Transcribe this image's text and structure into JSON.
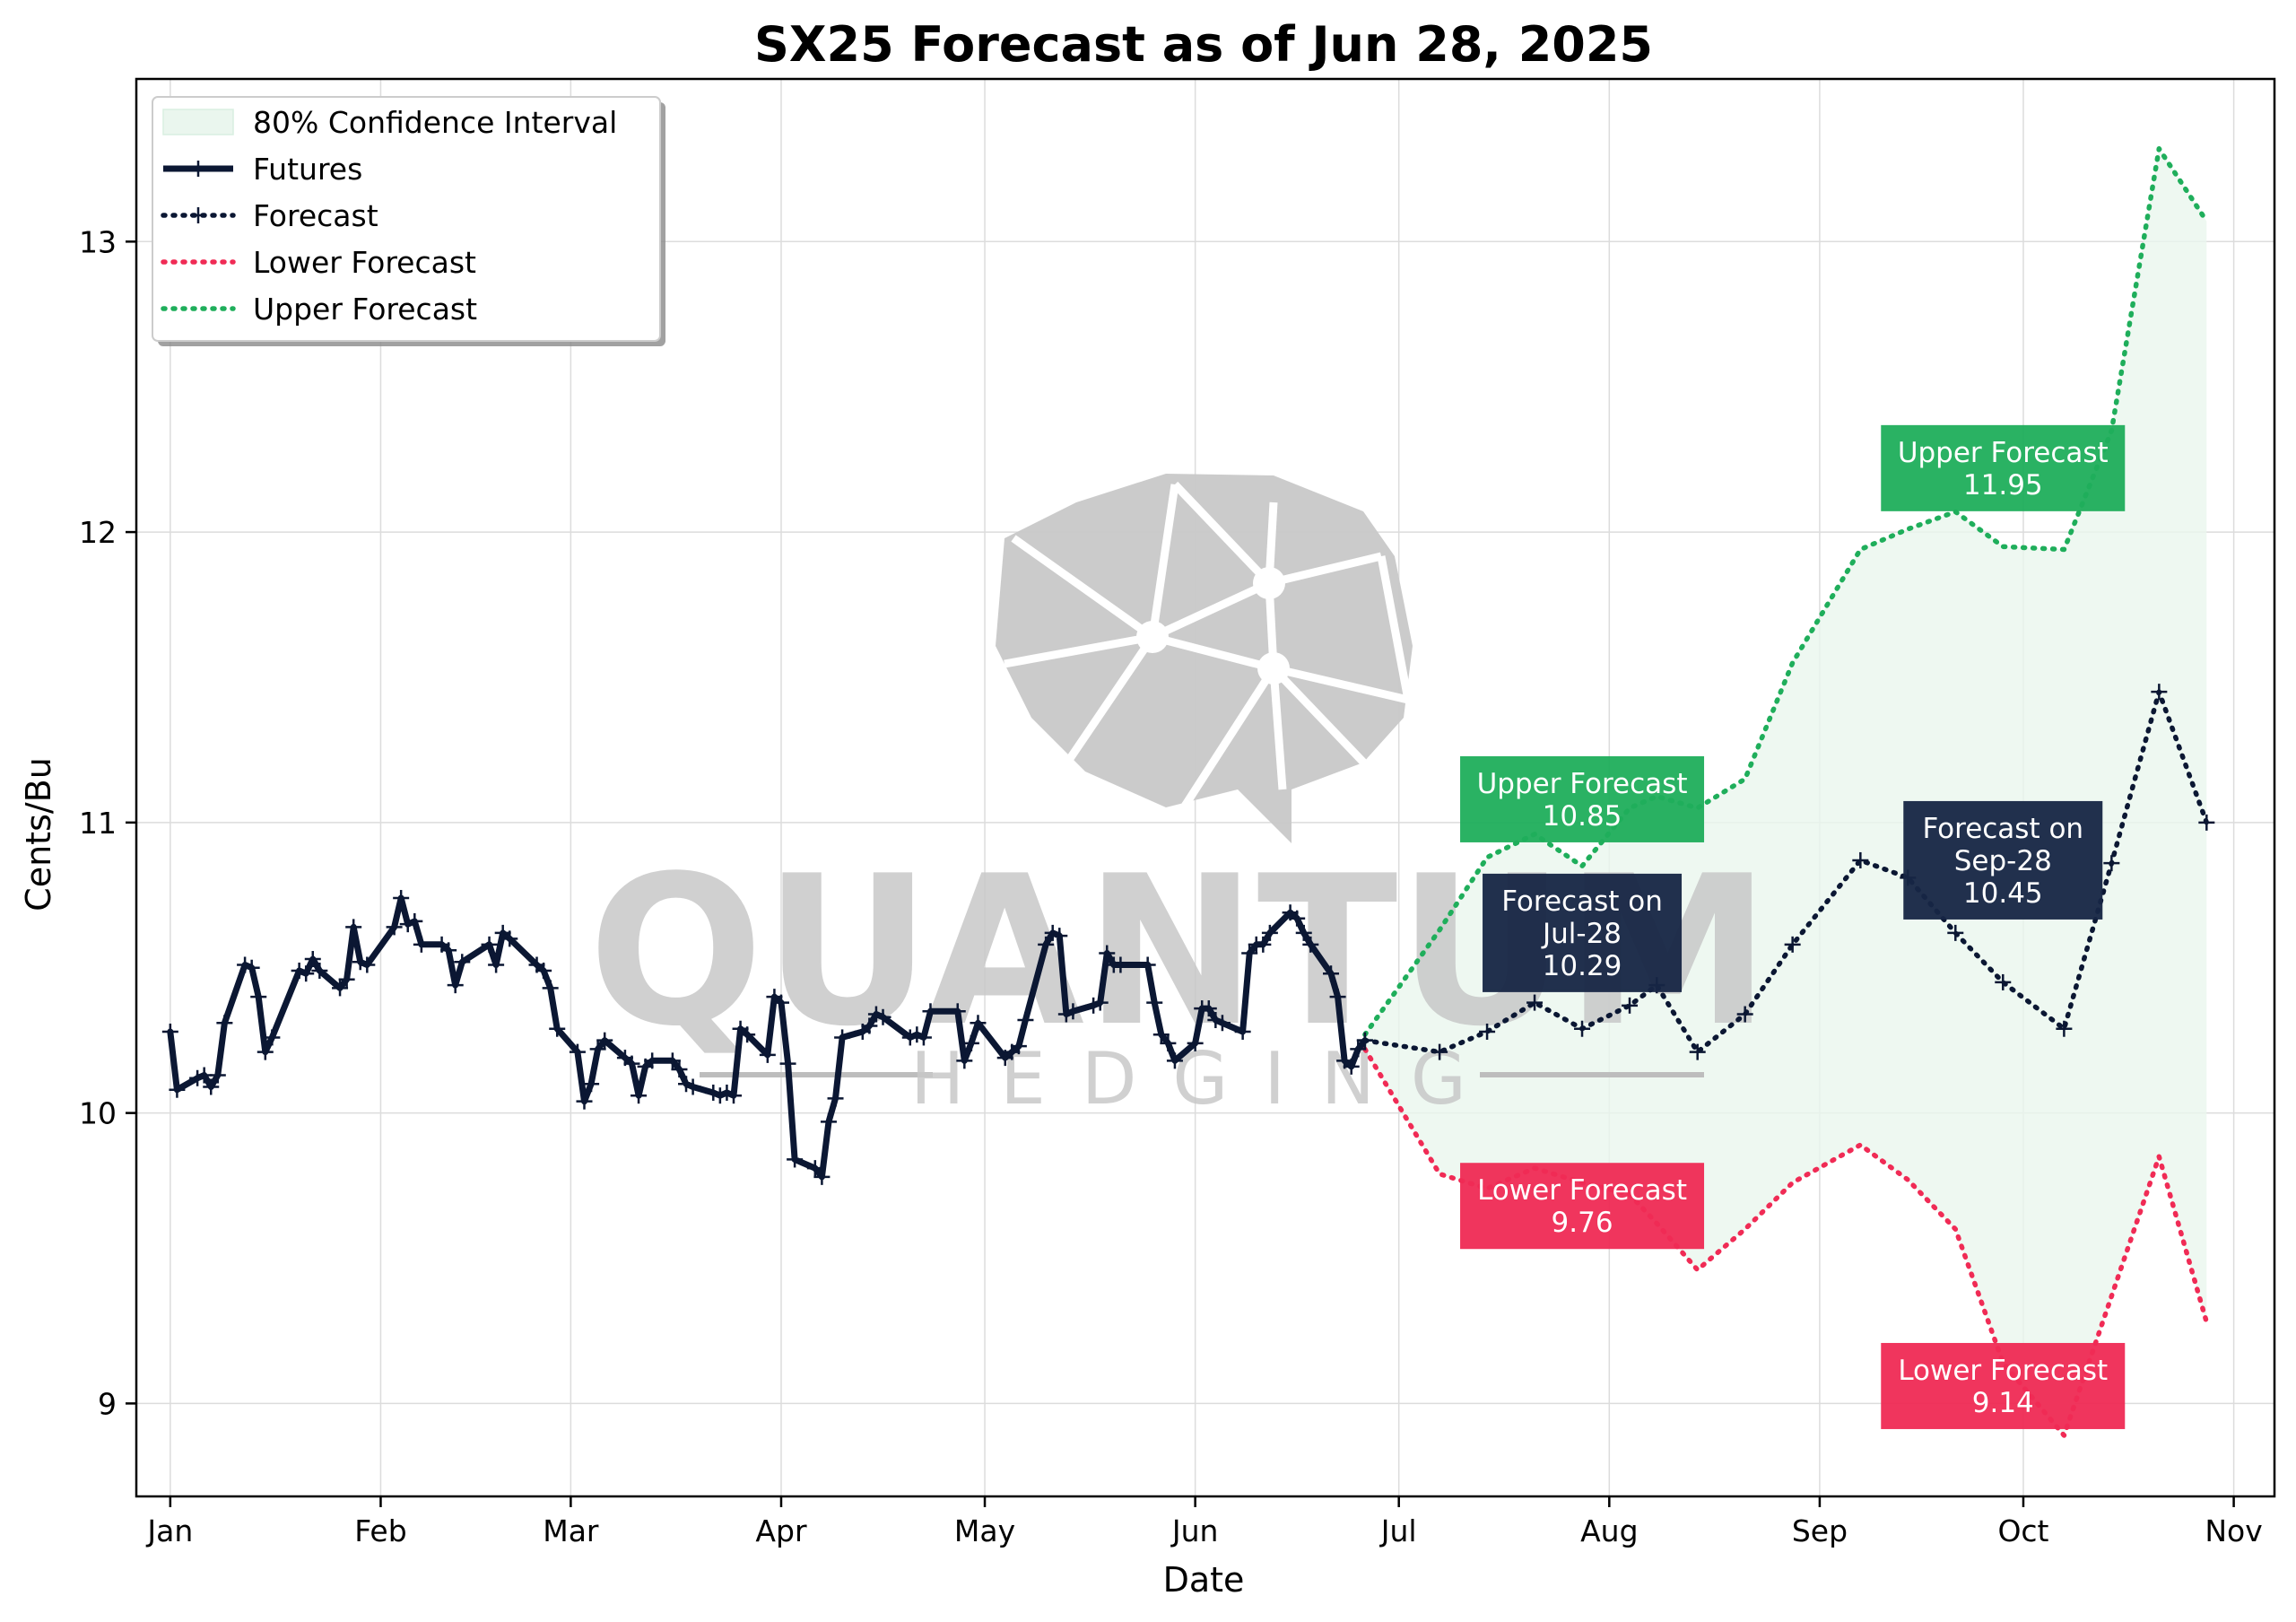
{
  "chart_data": {
    "type": "line",
    "title": "SX25 Forecast as of Jun 28, 2025",
    "xlabel": "Date",
    "ylabel": "Cents/Bu",
    "xlim": [
      "2024-12-27",
      "2025-11-07"
    ],
    "ylim": [
      8.68,
      13.56
    ],
    "grid": true,
    "legend_position": "top-left",
    "x_ticks": [
      {
        "date": "2025-01-01",
        "label": "Jan"
      },
      {
        "date": "2025-02-01",
        "label": "Feb"
      },
      {
        "date": "2025-03-01",
        "label": "Mar"
      },
      {
        "date": "2025-04-01",
        "label": "Apr"
      },
      {
        "date": "2025-05-01",
        "label": "May"
      },
      {
        "date": "2025-06-01",
        "label": "Jun"
      },
      {
        "date": "2025-07-01",
        "label": "Jul"
      },
      {
        "date": "2025-08-01",
        "label": "Aug"
      },
      {
        "date": "2025-09-01",
        "label": "Sep"
      },
      {
        "date": "2025-10-01",
        "label": "Oct"
      },
      {
        "date": "2025-11-01",
        "label": "Nov"
      }
    ],
    "y_ticks": [
      9,
      10,
      11,
      12,
      13
    ],
    "legend": [
      {
        "label": "80% Confidence Interval",
        "color": "#eaf6ee",
        "style": "fill"
      },
      {
        "label": "Futures",
        "color": "#0b1733",
        "style": "solid"
      },
      {
        "label": "Forecast",
        "color": "#0b1733",
        "style": "dotted"
      },
      {
        "label": "Lower Forecast",
        "color": "#f02b55",
        "style": "dotted"
      },
      {
        "label": "Upper Forecast",
        "color": "#1fae5b",
        "style": "dotted"
      }
    ],
    "series": [
      {
        "name": "Futures",
        "color": "#0b1733",
        "points": [
          [
            "2025-01-01",
            10.28
          ],
          [
            "2025-01-02",
            10.08
          ],
          [
            "2025-01-05",
            10.12
          ],
          [
            "2025-01-06",
            10.13
          ],
          [
            "2025-01-07",
            10.09
          ],
          [
            "2025-01-08",
            10.13
          ],
          [
            "2025-01-09",
            10.31
          ],
          [
            "2025-01-12",
            10.51
          ],
          [
            "2025-01-13",
            10.5
          ],
          [
            "2025-01-14",
            10.4
          ],
          [
            "2025-01-15",
            10.21
          ],
          [
            "2025-01-16",
            10.26
          ],
          [
            "2025-01-20",
            10.49
          ],
          [
            "2025-01-21",
            10.48
          ],
          [
            "2025-01-22",
            10.53
          ],
          [
            "2025-01-23",
            10.49
          ],
          [
            "2025-01-26",
            10.43
          ],
          [
            "2025-01-27",
            10.46
          ],
          [
            "2025-01-28",
            10.64
          ],
          [
            "2025-01-29",
            10.52
          ],
          [
            "2025-01-30",
            10.51
          ],
          [
            "2025-02-03",
            10.64
          ],
          [
            "2025-02-04",
            10.74
          ],
          [
            "2025-02-05",
            10.65
          ],
          [
            "2025-02-06",
            10.66
          ],
          [
            "2025-02-07",
            10.58
          ],
          [
            "2025-02-10",
            10.58
          ],
          [
            "2025-02-11",
            10.56
          ],
          [
            "2025-02-12",
            10.44
          ],
          [
            "2025-02-13",
            10.52
          ],
          [
            "2025-02-17",
            10.58
          ],
          [
            "2025-02-18",
            10.51
          ],
          [
            "2025-02-19",
            10.62
          ],
          [
            "2025-02-20",
            10.6
          ],
          [
            "2025-02-24",
            10.51
          ],
          [
            "2025-02-25",
            10.49
          ],
          [
            "2025-02-26",
            10.43
          ],
          [
            "2025-02-27",
            10.29
          ],
          [
            "2025-03-02",
            10.21
          ],
          [
            "2025-03-03",
            10.04
          ],
          [
            "2025-03-04",
            10.1
          ],
          [
            "2025-03-05",
            10.22
          ],
          [
            "2025-03-06",
            10.25
          ],
          [
            "2025-03-09",
            10.19
          ],
          [
            "2025-03-10",
            10.17
          ],
          [
            "2025-03-11",
            10.06
          ],
          [
            "2025-03-12",
            10.16
          ],
          [
            "2025-03-13",
            10.18
          ],
          [
            "2025-03-16",
            10.18
          ],
          [
            "2025-03-17",
            10.15
          ],
          [
            "2025-03-18",
            10.1
          ],
          [
            "2025-03-19",
            10.09
          ],
          [
            "2025-03-22",
            10.07
          ],
          [
            "2025-03-23",
            10.06
          ],
          [
            "2025-03-24",
            10.07
          ],
          [
            "2025-03-25",
            10.06
          ],
          [
            "2025-03-26",
            10.29
          ],
          [
            "2025-03-27",
            10.27
          ],
          [
            "2025-03-30",
            10.2
          ],
          [
            "2025-03-31",
            10.4
          ],
          [
            "2025-04-01",
            10.38
          ],
          [
            "2025-04-02",
            10.17
          ],
          [
            "2025-04-03",
            9.84
          ],
          [
            "2025-04-06",
            9.81
          ],
          [
            "2025-04-07",
            9.78
          ],
          [
            "2025-04-08",
            9.97
          ],
          [
            "2025-04-09",
            10.05
          ],
          [
            "2025-04-10",
            10.26
          ],
          [
            "2025-04-13",
            10.28
          ],
          [
            "2025-04-14",
            10.3
          ],
          [
            "2025-04-15",
            10.34
          ],
          [
            "2025-04-16",
            10.33
          ],
          [
            "2025-04-20",
            10.26
          ],
          [
            "2025-04-21",
            10.27
          ],
          [
            "2025-04-22",
            10.26
          ],
          [
            "2025-04-23",
            10.35
          ],
          [
            "2025-04-27",
            10.35
          ],
          [
            "2025-04-28",
            10.18
          ],
          [
            "2025-04-29",
            10.24
          ],
          [
            "2025-04-30",
            10.31
          ],
          [
            "2025-05-04",
            10.19
          ],
          [
            "2025-05-05",
            10.21
          ],
          [
            "2025-05-06",
            10.23
          ],
          [
            "2025-05-07",
            10.32
          ],
          [
            "2025-05-10",
            10.58
          ],
          [
            "2025-05-11",
            10.62
          ],
          [
            "2025-05-12",
            10.61
          ],
          [
            "2025-05-13",
            10.34
          ],
          [
            "2025-05-14",
            10.35
          ],
          [
            "2025-05-17",
            10.37
          ],
          [
            "2025-05-18",
            10.38
          ],
          [
            "2025-05-19",
            10.55
          ],
          [
            "2025-05-20",
            10.51
          ],
          [
            "2025-05-21",
            10.51
          ],
          [
            "2025-05-25",
            10.51
          ],
          [
            "2025-05-26",
            10.38
          ],
          [
            "2025-05-27",
            10.27
          ],
          [
            "2025-05-28",
            10.24
          ],
          [
            "2025-05-29",
            10.18
          ],
          [
            "2025-06-01",
            10.24
          ],
          [
            "2025-06-02",
            10.36
          ],
          [
            "2025-06-03",
            10.36
          ],
          [
            "2025-06-04",
            10.32
          ],
          [
            "2025-06-05",
            10.31
          ],
          [
            "2025-06-08",
            10.28
          ],
          [
            "2025-06-09",
            10.55
          ],
          [
            "2025-06-10",
            10.58
          ],
          [
            "2025-06-11",
            10.58
          ],
          [
            "2025-06-12",
            10.62
          ],
          [
            "2025-06-15",
            10.69
          ],
          [
            "2025-06-16",
            10.67
          ],
          [
            "2025-06-17",
            10.62
          ],
          [
            "2025-06-18",
            10.58
          ],
          [
            "2025-06-21",
            10.48
          ],
          [
            "2025-06-22",
            10.4
          ],
          [
            "2025-06-23",
            10.18
          ],
          [
            "2025-06-24",
            10.16
          ],
          [
            "2025-06-25",
            10.22
          ],
          [
            "2025-06-26",
            10.25
          ]
        ]
      },
      {
        "name": "Forecast",
        "color": "#0b1733",
        "points": [
          [
            "2025-06-26",
            10.25
          ],
          [
            "2025-07-07",
            10.21
          ],
          [
            "2025-07-14",
            10.28
          ],
          [
            "2025-07-21",
            10.38
          ],
          [
            "2025-07-28",
            10.29
          ],
          [
            "2025-08-04",
            10.37
          ],
          [
            "2025-08-08",
            10.44
          ],
          [
            "2025-08-14",
            10.21
          ],
          [
            "2025-08-21",
            10.34
          ],
          [
            "2025-08-28",
            10.58
          ],
          [
            "2025-09-07",
            10.87
          ],
          [
            "2025-09-14",
            10.81
          ],
          [
            "2025-09-21",
            10.62
          ],
          [
            "2025-09-28",
            10.45
          ],
          [
            "2025-10-07",
            10.29
          ],
          [
            "2025-10-14",
            10.86
          ],
          [
            "2025-10-21",
            11.45
          ],
          [
            "2025-10-28",
            11.0
          ]
        ]
      },
      {
        "name": "Lower Forecast",
        "color": "#f02b55",
        "points": [
          [
            "2025-06-26",
            10.22
          ],
          [
            "2025-07-07",
            9.79
          ],
          [
            "2025-07-14",
            9.74
          ],
          [
            "2025-07-21",
            9.81
          ],
          [
            "2025-07-28",
            9.76
          ],
          [
            "2025-08-04",
            9.72
          ],
          [
            "2025-08-08",
            9.62
          ],
          [
            "2025-08-14",
            9.46
          ],
          [
            "2025-08-21",
            9.6
          ],
          [
            "2025-08-28",
            9.76
          ],
          [
            "2025-09-07",
            9.89
          ],
          [
            "2025-09-14",
            9.77
          ],
          [
            "2025-09-21",
            9.6
          ],
          [
            "2025-09-28",
            9.14
          ],
          [
            "2025-10-07",
            8.89
          ],
          [
            "2025-10-14",
            9.37
          ],
          [
            "2025-10-21",
            9.85
          ],
          [
            "2025-10-28",
            9.28
          ]
        ]
      },
      {
        "name": "Upper Forecast",
        "color": "#1fae5b",
        "points": [
          [
            "2025-06-26",
            10.27
          ],
          [
            "2025-07-07",
            10.63
          ],
          [
            "2025-07-14",
            10.88
          ],
          [
            "2025-07-21",
            10.96
          ],
          [
            "2025-07-28",
            10.85
          ],
          [
            "2025-08-04",
            11.05
          ],
          [
            "2025-08-08",
            11.09
          ],
          [
            "2025-08-14",
            11.05
          ],
          [
            "2025-08-21",
            11.15
          ],
          [
            "2025-08-28",
            11.55
          ],
          [
            "2025-09-07",
            11.94
          ],
          [
            "2025-09-14",
            12.01
          ],
          [
            "2025-09-21",
            12.07
          ],
          [
            "2025-09-28",
            11.95
          ],
          [
            "2025-10-07",
            11.94
          ],
          [
            "2025-10-14",
            12.35
          ],
          [
            "2025-10-21",
            13.32
          ],
          [
            "2025-10-28",
            13.07
          ]
        ]
      }
    ],
    "annotations": [
      {
        "kind": "upper",
        "lines": [
          "Upper Forecast",
          "10.85"
        ],
        "anchor": [
          "2025-07-28",
          11.08
        ],
        "color": "#1fae5b"
      },
      {
        "kind": "forecast",
        "lines": [
          "Forecast on",
          "Jul-28",
          "10.29"
        ],
        "anchor": [
          "2025-07-28",
          10.62
        ],
        "color": "#172645"
      },
      {
        "kind": "lower",
        "lines": [
          "Lower Forecast",
          "9.76"
        ],
        "anchor": [
          "2025-07-28",
          9.68
        ],
        "color": "#f02b55"
      },
      {
        "kind": "upper",
        "lines": [
          "Upper Forecast",
          "11.95"
        ],
        "anchor": [
          "2025-09-28",
          12.22
        ],
        "color": "#1fae5b"
      },
      {
        "kind": "forecast",
        "lines": [
          "Forecast on",
          "Sep-28",
          "10.45"
        ],
        "anchor": [
          "2025-09-28",
          10.87
        ],
        "color": "#172645"
      },
      {
        "kind": "lower",
        "lines": [
          "Lower Forecast",
          "9.14"
        ],
        "anchor": [
          "2025-09-28",
          9.06
        ],
        "color": "#f02b55"
      }
    ]
  },
  "watermark": {
    "word": "QUANTUM",
    "subword": "HEDGING",
    "color": "#c8c8c8"
  }
}
